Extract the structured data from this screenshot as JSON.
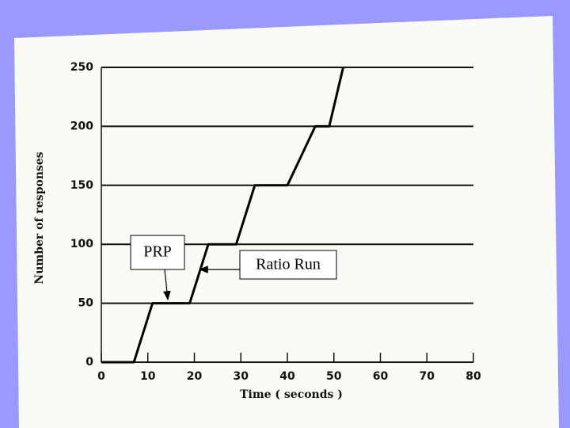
{
  "chart_data": {
    "type": "line",
    "x_label": "Time ( seconds )",
    "y_label": "Number of responses",
    "xlim": [
      0,
      80
    ],
    "ylim": [
      0,
      250
    ],
    "xticks": [
      0,
      10,
      20,
      30,
      40,
      50,
      60,
      70,
      80
    ],
    "yticks": [
      0,
      50,
      100,
      150,
      200,
      250
    ],
    "grid": true,
    "series": [
      {
        "color": "#000000",
        "x": [
          0,
          7,
          11,
          19,
          23,
          29,
          33,
          40,
          46,
          49,
          52
        ],
        "values": [
          0,
          0,
          50,
          50,
          100,
          100,
          150,
          150,
          200,
          200,
          250
        ]
      }
    ],
    "annotations": [
      "PRP",
      "Ratio Run"
    ]
  }
}
